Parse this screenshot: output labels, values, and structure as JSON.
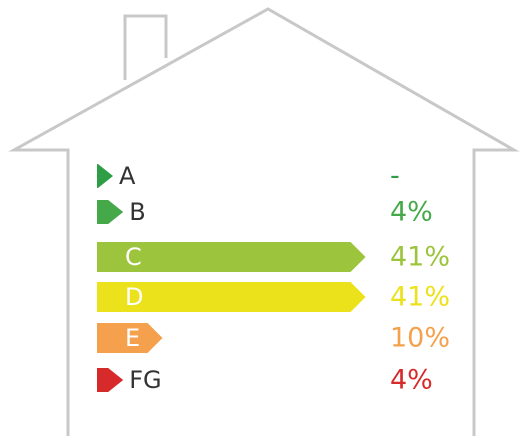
{
  "chart_data": {
    "type": "bar",
    "categories": [
      "A",
      "B",
      "C",
      "D",
      "E",
      "FG"
    ],
    "values": [
      null,
      4,
      41,
      41,
      10,
      4
    ],
    "value_labels": [
      "-",
      "4%",
      "41%",
      "41%",
      "10%",
      "4%"
    ],
    "colors": [
      "#2e9e46",
      "#45a94a",
      "#9cc43c",
      "#ece21c",
      "#f5a04c",
      "#d72a2a"
    ]
  }
}
